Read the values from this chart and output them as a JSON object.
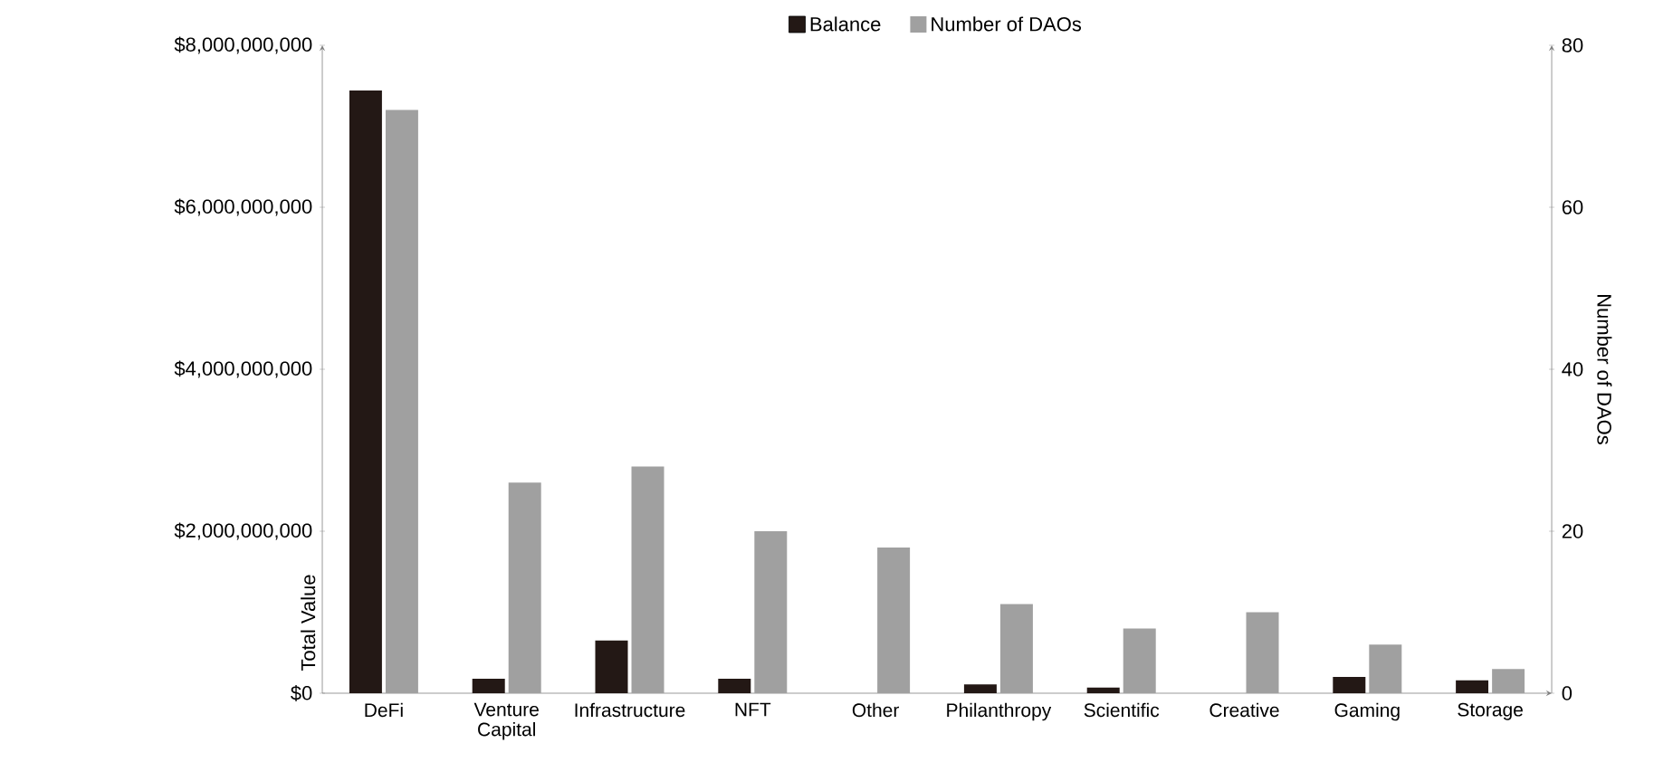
{
  "chart_data": {
    "type": "bar",
    "categories": [
      "DeFi",
      "Venture Capital",
      "Infrastructure",
      "NFT",
      "Other",
      "Philanthropy",
      "Scientific",
      "Creative",
      "Gaming",
      "Storage"
    ],
    "series": [
      {
        "name": "Balance",
        "color": "#231815",
        "values": [
          7440000000,
          180000000,
          650000000,
          180000000,
          0,
          110000000,
          70000000,
          0,
          200000000,
          160000000
        ]
      },
      {
        "name": "Number of DAOs",
        "color": "#a0a0a0",
        "axis": "y2",
        "values": [
          72,
          26,
          28,
          20,
          18,
          11,
          8,
          10,
          6,
          3
        ]
      }
    ],
    "ylabel": "Total Value",
    "y2label": "Number of DAOs",
    "ylim": [
      0,
      8000000000
    ],
    "yticks": [
      {
        "value": 0,
        "label": "$0"
      },
      {
        "value": 2000000000,
        "label": "$2,000,000,000"
      },
      {
        "value": 4000000000,
        "label": "$4,000,000,000"
      },
      {
        "value": 6000000000,
        "label": "$6,000,000,000"
      },
      {
        "value": 8000000000,
        "label": "$8,000,000,000"
      }
    ],
    "y2lim": [
      0,
      80
    ],
    "y2ticks": [
      0,
      20,
      40,
      60,
      80
    ],
    "legend": "top",
    "grid": false
  }
}
